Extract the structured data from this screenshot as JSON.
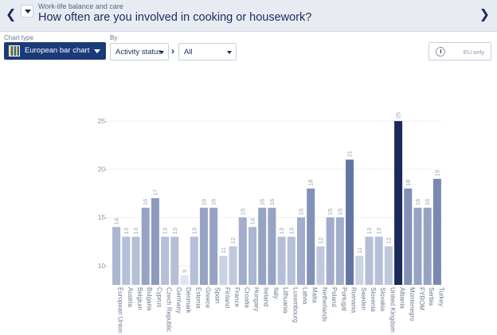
{
  "header": {
    "subtitle": "Work-life balance and care",
    "title": "How often are you involved in cooking or housework?"
  },
  "controls": {
    "chart_type_label": "Chart type",
    "chart_type_value": "European bar chart",
    "by_label": "By",
    "by_value": "Activity status",
    "filter_value": "All",
    "eu_only_label": "EU only"
  },
  "colors": {
    "header_bg": "#e8ecf2",
    "accent_dark": "#1b3a7a",
    "bar_highest": "#1b2a5c"
  },
  "chart_data": {
    "type": "bar",
    "categories": [
      "European Union",
      "Austria",
      "Belgium",
      "Bulgaria",
      "Cyprus",
      "Czech Republic",
      "Germany",
      "Denmark",
      "Estonia",
      "Greece",
      "Spain",
      "Finland",
      "France",
      "Croatia",
      "Hungary",
      "Ireland",
      "Italy",
      "Lithuania",
      "Luxembourg",
      "Latvia",
      "Malta",
      "Netherlands",
      "Poland",
      "Portugal",
      "Romania",
      "Sweden",
      "Slovenia",
      "Slovakia",
      "United Kingdom",
      "Albania",
      "Montenegro",
      "FYROM",
      "Serbia",
      "Turkey"
    ],
    "values": [
      14,
      13,
      13,
      16,
      17,
      13,
      13,
      9,
      13,
      16,
      16,
      11,
      12,
      15,
      14,
      16,
      16,
      13,
      13,
      15,
      18,
      12,
      15,
      15,
      21,
      11,
      13,
      13,
      12,
      25,
      18,
      16,
      16,
      19
    ],
    "yticks": [
      10,
      15,
      20,
      25
    ],
    "ylim": [
      8,
      26
    ],
    "grid": true,
    "legend": "none"
  }
}
